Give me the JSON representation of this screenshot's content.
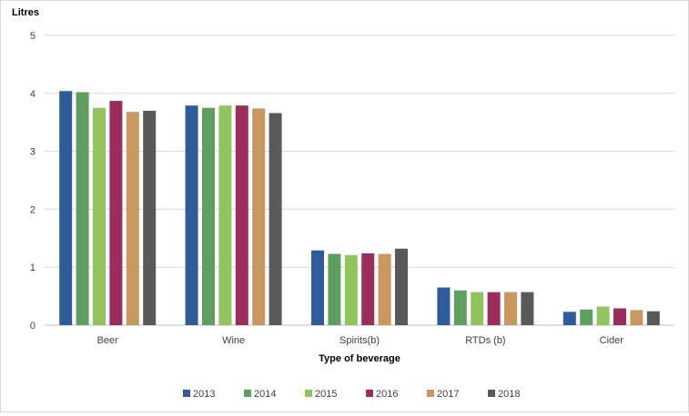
{
  "chart_data": {
    "type": "bar",
    "ylabel": "Litres",
    "xlabel": "Type of beverage",
    "ylim": [
      0,
      5
    ],
    "yticks": [
      0,
      1,
      2,
      3,
      4,
      5
    ],
    "grid": true,
    "legend_position": "bottom",
    "categories": [
      "Beer",
      "Wine",
      "Spirits(b)",
      "RTDs (b)",
      "Cider"
    ],
    "series": [
      {
        "name": "2013",
        "color": "#2E5C9A",
        "values": [
          4.04,
          3.79,
          1.29,
          0.65,
          0.23
        ]
      },
      {
        "name": "2014",
        "color": "#5E9E5E",
        "values": [
          4.02,
          3.75,
          1.23,
          0.6,
          0.27
        ]
      },
      {
        "name": "2015",
        "color": "#92C45E",
        "values": [
          3.75,
          3.79,
          1.21,
          0.57,
          0.32
        ]
      },
      {
        "name": "2016",
        "color": "#9B2C5C",
        "values": [
          3.87,
          3.79,
          1.24,
          0.57,
          0.29
        ]
      },
      {
        "name": "2017",
        "color": "#C9985E",
        "values": [
          3.68,
          3.74,
          1.23,
          0.57,
          0.26
        ]
      },
      {
        "name": "2018",
        "color": "#595959",
        "values": [
          3.7,
          3.66,
          1.32,
          0.57,
          0.24
        ]
      }
    ]
  }
}
